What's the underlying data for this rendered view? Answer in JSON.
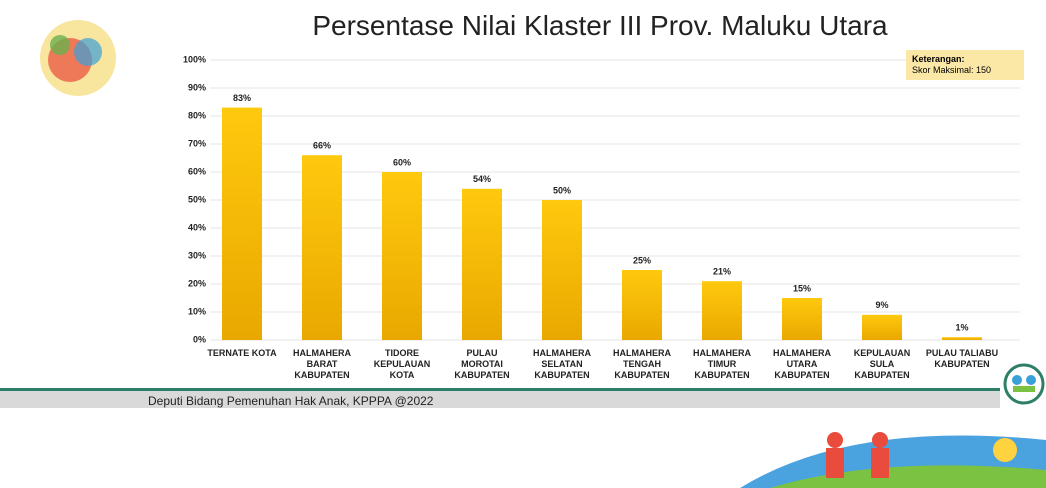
{
  "chart_data": {
    "type": "bar",
    "title": "Persentase Nilai Klaster III Prov. Maluku Utara",
    "categories": [
      "TERNATE KOTA",
      "HALMAHERA BARAT KABUPATEN",
      "TIDORE KEPULAUAN KOTA",
      "PULAU MOROTAI KABUPATEN",
      "HALMAHERA SELATAN KABUPATEN",
      "HALMAHERA TENGAH KABUPATEN",
      "HALMAHERA TIMUR KABUPATEN",
      "HALMAHERA UTARA KABUPATEN",
      "KEPULAUAN SULA KABUPATEN",
      "PULAU TALIABU KABUPATEN"
    ],
    "values": [
      83,
      66,
      60,
      54,
      50,
      25,
      21,
      15,
      9,
      1
    ],
    "value_labels": [
      "83%",
      "66%",
      "60%",
      "54%",
      "50%",
      "25%",
      "21%",
      "15%",
      "9%",
      "1%"
    ],
    "color": "#f6bb00",
    "ylim": [
      0,
      100
    ],
    "yticks": [
      {
        "value": 0,
        "label": "0%"
      },
      {
        "value": 10,
        "label": "10%"
      },
      {
        "value": 20,
        "label": "20%"
      },
      {
        "value": 30,
        "label": "30%"
      },
      {
        "value": 40,
        "label": "40%"
      },
      {
        "value": 50,
        "label": "50%"
      },
      {
        "value": 60,
        "label": "60%"
      },
      {
        "value": 70,
        "label": "70%"
      },
      {
        "value": 80,
        "label": "80%"
      },
      {
        "value": 90,
        "label": "90%"
      },
      {
        "value": 100,
        "label": "100%"
      }
    ],
    "grid": true,
    "annotations": [
      "Keterangan:",
      "Skor Maksimal: 150"
    ]
  },
  "footer": "Deputi Bidang Pemenuhan Hak Anak, KPPPA @2022"
}
